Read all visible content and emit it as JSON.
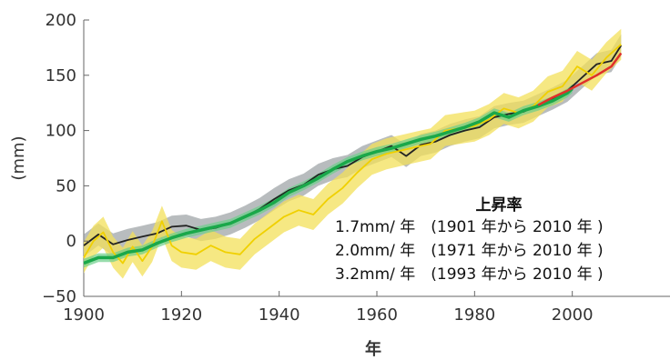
{
  "chart_data": {
    "type": "line",
    "xlabel": "年",
    "ylabel": "(mm)",
    "xlim": [
      1900,
      2020
    ],
    "ylim": [
      -50,
      200
    ],
    "x_ticks": [
      "1900",
      "1920",
      "1940",
      "1960",
      "1980",
      "2000"
    ],
    "y_ticks": [
      "−50",
      "0",
      "50",
      "100",
      "150",
      "200"
    ],
    "annotation": {
      "title": "上昇率",
      "lines": [
        "1.7mm/ 年　(1901 年から 2010 年 )",
        "2.0mm/ 年　(1971 年から 2010 年 )",
        "3.2mm/ 年　(1993 年から 2010 年 )"
      ]
    },
    "series": [
      {
        "color": "#222222",
        "band_color": "#9aa0a3",
        "points": [
          [
            1900,
            -4
          ],
          [
            1903,
            6
          ],
          [
            1906,
            -3
          ],
          [
            1909,
            1
          ],
          [
            1912,
            4
          ],
          [
            1915,
            7
          ],
          [
            1918,
            13
          ],
          [
            1921,
            14
          ],
          [
            1924,
            10
          ],
          [
            1927,
            12
          ],
          [
            1930,
            16
          ],
          [
            1933,
            22
          ],
          [
            1936,
            29
          ],
          [
            1939,
            38
          ],
          [
            1942,
            46
          ],
          [
            1945,
            51
          ],
          [
            1948,
            60
          ],
          [
            1951,
            65
          ],
          [
            1954,
            68
          ],
          [
            1957,
            76
          ],
          [
            1960,
            81
          ],
          [
            1963,
            86
          ],
          [
            1966,
            77
          ],
          [
            1969,
            87
          ],
          [
            1972,
            90
          ],
          [
            1975,
            96
          ],
          [
            1978,
            100
          ],
          [
            1981,
            103
          ],
          [
            1984,
            112
          ],
          [
            1987,
            115
          ],
          [
            1990,
            117
          ],
          [
            1993,
            123
          ],
          [
            1996,
            129
          ],
          [
            1999,
            136
          ],
          [
            2002,
            148
          ],
          [
            2005,
            160
          ],
          [
            2008,
            163
          ],
          [
            2010,
            177
          ]
        ],
        "band_halfwidth": 10
      },
      {
        "color": "#f0d000",
        "band_color": "#f3e05a",
        "points": [
          [
            1900,
            -15
          ],
          [
            1902,
            0
          ],
          [
            1904,
            8
          ],
          [
            1906,
            -10
          ],
          [
            1908,
            -20
          ],
          [
            1910,
            -5
          ],
          [
            1912,
            -18
          ],
          [
            1914,
            -5
          ],
          [
            1916,
            18
          ],
          [
            1918,
            -4
          ],
          [
            1920,
            -10
          ],
          [
            1923,
            -12
          ],
          [
            1926,
            -4
          ],
          [
            1929,
            -10
          ],
          [
            1932,
            -12
          ],
          [
            1935,
            2
          ],
          [
            1938,
            12
          ],
          [
            1941,
            22
          ],
          [
            1944,
            28
          ],
          [
            1947,
            24
          ],
          [
            1950,
            38
          ],
          [
            1953,
            48
          ],
          [
            1956,
            62
          ],
          [
            1959,
            74
          ],
          [
            1962,
            79
          ],
          [
            1965,
            82
          ],
          [
            1968,
            85
          ],
          [
            1971,
            88
          ],
          [
            1974,
            100
          ],
          [
            1977,
            102
          ],
          [
            1980,
            104
          ],
          [
            1983,
            110
          ],
          [
            1986,
            120
          ],
          [
            1989,
            116
          ],
          [
            1992,
            122
          ],
          [
            1995,
            135
          ],
          [
            1998,
            140
          ],
          [
            2001,
            158
          ],
          [
            2004,
            150
          ],
          [
            2007,
            166
          ],
          [
            2010,
            178
          ]
        ],
        "band_halfwidth": 14
      },
      {
        "color": "#1aa84a",
        "band_color": "#6ccf8a",
        "points": [
          [
            1900,
            -20
          ],
          [
            1903,
            -15
          ],
          [
            1906,
            -15
          ],
          [
            1909,
            -10
          ],
          [
            1912,
            -8
          ],
          [
            1915,
            -2
          ],
          [
            1918,
            3
          ],
          [
            1921,
            7
          ],
          [
            1924,
            10
          ],
          [
            1927,
            13
          ],
          [
            1930,
            16
          ],
          [
            1933,
            22
          ],
          [
            1936,
            28
          ],
          [
            1939,
            35
          ],
          [
            1942,
            44
          ],
          [
            1945,
            50
          ],
          [
            1948,
            57
          ],
          [
            1951,
            65
          ],
          [
            1954,
            72
          ],
          [
            1957,
            77
          ],
          [
            1960,
            81
          ],
          [
            1963,
            84
          ],
          [
            1966,
            88
          ],
          [
            1969,
            92
          ],
          [
            1972,
            95
          ],
          [
            1975,
            99
          ],
          [
            1978,
            103
          ],
          [
            1981,
            108
          ],
          [
            1984,
            116
          ],
          [
            1987,
            112
          ],
          [
            1990,
            118
          ],
          [
            1993,
            122
          ],
          [
            1996,
            127
          ],
          [
            1999,
            134
          ],
          [
            2000,
            138
          ]
        ],
        "band_halfwidth": 4
      },
      {
        "color": "#e0302a",
        "points": [
          [
            1993,
            123
          ],
          [
            1996,
            130
          ],
          [
            1999,
            136
          ],
          [
            2002,
            143
          ],
          [
            2005,
            150
          ],
          [
            2008,
            158
          ],
          [
            2010,
            170
          ]
        ]
      }
    ]
  }
}
